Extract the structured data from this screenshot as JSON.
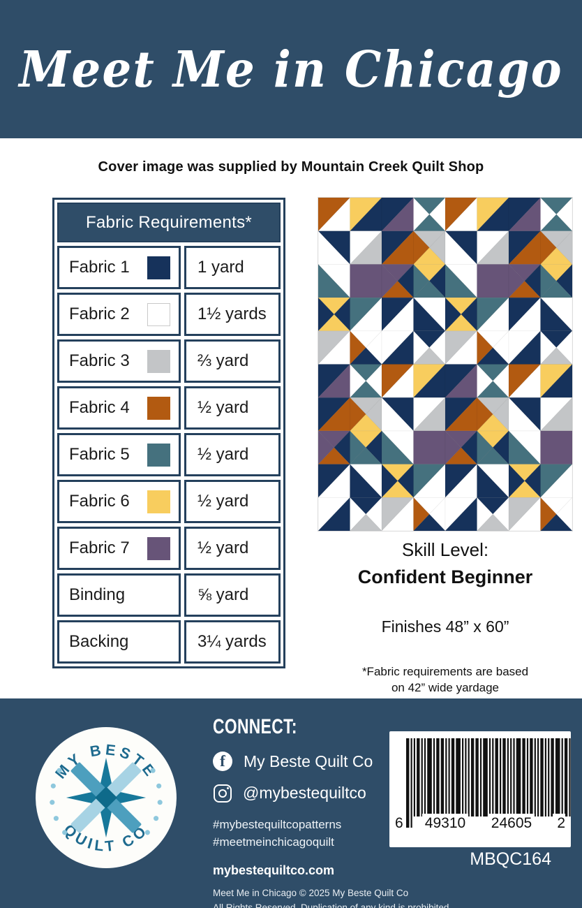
{
  "banner": {
    "title": "Meet Me in Chicago"
  },
  "credit_line": "Cover image was supplied by Mountain Creek Quilt Shop",
  "fabric_table": {
    "header": "Fabric Requirements*",
    "rows": [
      {
        "label": "Fabric 1",
        "swatch": "navy",
        "yardage": "1 yard"
      },
      {
        "label": "Fabric 2",
        "swatch": "white",
        "yardage": "1½ yards"
      },
      {
        "label": "Fabric 3",
        "swatch": "gray",
        "yardage": "⅔ yard"
      },
      {
        "label": "Fabric 4",
        "swatch": "rust",
        "yardage": "½ yard"
      },
      {
        "label": "Fabric 5",
        "swatch": "teal",
        "yardage": "½ yard"
      },
      {
        "label": "Fabric 6",
        "swatch": "yellow",
        "yardage": "½ yard"
      },
      {
        "label": "Fabric 7",
        "swatch": "purple",
        "yardage": "½ yard"
      },
      {
        "label": "Binding",
        "swatch": null,
        "yardage": "⅝ yard"
      },
      {
        "label": "Backing",
        "swatch": null,
        "yardage": "3¼ yards"
      }
    ]
  },
  "palette": {
    "navy": "#16325b",
    "white": "#ffffff",
    "gray": "#c3c5c7",
    "rust": "#b25a11",
    "teal": "#45717e",
    "yellow": "#f8cd5e",
    "purple": "#675478",
    "banner_navy": "#2f4d68",
    "border_navy": "#24405c"
  },
  "quilt": {
    "cols": 8,
    "rows": 10,
    "cell_legend": "S=solid, H/=half-square triangle seam bottomleft-topright [upperleft,lowerright], H\\=seam topleft-bottomright [upperright,lowerleft], Q=quarter-square [top,right,bottom,left]",
    "cells": [
      [
        "H/ rust white",
        "H/ yellow navy",
        "H/ navy purple",
        "Q teal white teal white",
        "H/ rust white",
        "H/ yellow navy",
        "H/ navy purple",
        "Q teal white teal white"
      ],
      [
        "H\\ navy white",
        "H/ white gray",
        "H/ navy rust",
        "Q gray gray yellow rust",
        "H\\ navy white",
        "H/ white gray",
        "H/ navy rust",
        "Q gray gray yellow rust"
      ],
      [
        "H\\ white teal",
        "S purple",
        "Q purple navy rust purple",
        "Q yellow navy teal teal",
        "H\\ white teal",
        "S purple",
        "Q purple navy rust purple",
        "Q yellow navy teal teal"
      ],
      [
        "Q yellow navy yellow navy",
        "H/ teal white",
        "H/ navy white",
        "H\\ white navy",
        "Q yellow navy yellow navy",
        "H/ teal white",
        "H/ navy white",
        "H\\ white navy"
      ],
      [
        "H/ gray white",
        "Q white white navy rust",
        "H/ white navy",
        "Q navy white gray white",
        "H/ gray white",
        "Q white white navy rust",
        "H/ white navy",
        "Q navy white gray white"
      ],
      [
        "H/ navy purple",
        "Q teal white teal white",
        "H/ rust white",
        "H/ yellow navy",
        "H/ navy purple",
        "Q teal white teal white",
        "H/ rust white",
        "H/ yellow navy"
      ],
      [
        "H/ navy rust",
        "Q gray gray yellow rust",
        "H\\ navy white",
        "H/ white gray",
        "H/ navy rust",
        "Q gray gray yellow rust",
        "H\\ navy white",
        "H/ white gray"
      ],
      [
        "Q purple navy rust purple",
        "Q yellow navy teal teal",
        "H\\ white teal",
        "S purple",
        "Q purple navy rust purple",
        "Q yellow navy teal teal",
        "H\\ white teal",
        "S purple"
      ],
      [
        "H/ navy white",
        "H\\ white navy",
        "Q yellow navy yellow navy",
        "H/ teal white",
        "H/ navy white",
        "H\\ white navy",
        "Q yellow navy yellow navy",
        "H/ teal white"
      ],
      [
        "H/ white navy",
        "Q navy white gray white",
        "H/ gray white",
        "Q white white navy rust",
        "H/ white navy",
        "Q navy white gray white",
        "H/ gray white",
        "Q white white navy rust"
      ]
    ]
  },
  "details": {
    "skill_label": "Skill Level:",
    "skill_value": "Confident Beginner",
    "finished_size": "Finishes 48” x 60”",
    "footnote_line1": "*Fabric requirements are based",
    "footnote_line2": "on 42” wide yardage"
  },
  "footer": {
    "logo": {
      "arc_top": "MY BESTE",
      "arc_bottom": "QUILT CO"
    },
    "connect_heading": "CONNECT:",
    "facebook": "My Beste Quilt Co",
    "instagram": "@mybestequiltco",
    "hashtag_line1": "#mybestequiltcopatterns",
    "hashtag_line2": "#meetmeinchicagoquilt",
    "website": "mybestequiltco.com",
    "copyright_line1": "Meet Me in Chicago © 2025 My Beste Quilt Co",
    "copyright_line2": "All Rights Reserved. Duplication of any kind is prohibited.",
    "barcode_digits": [
      "6",
      "49310",
      "24605",
      "2"
    ],
    "sku": "MBQC164"
  }
}
